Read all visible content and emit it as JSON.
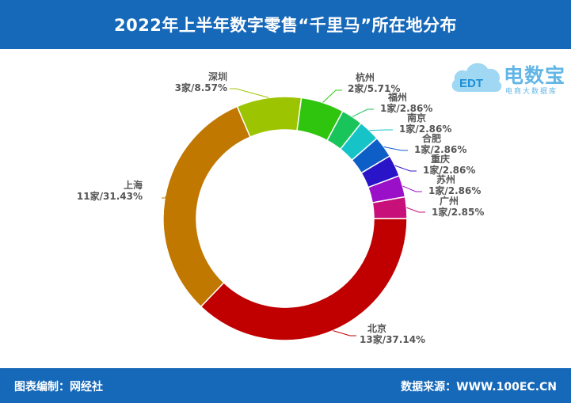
{
  "header": {
    "title": "2022年上半年数字零售“千里马”所在地分布"
  },
  "footer": {
    "editor": "图表编制：网经社",
    "source": "数据来源：WWW.100EC.CN"
  },
  "logo": {
    "brand": "电数宝",
    "subtitle": "电商大数据库",
    "badge": "EDT"
  },
  "chart_data": {
    "type": "pie",
    "donut": true,
    "title": "2022年上半年数字零售“千里马”所在地分布",
    "slices": [
      {
        "name": "北京",
        "count": 13,
        "percent": 37.14,
        "label": "13家/37.14%",
        "color": "#c00000"
      },
      {
        "name": "上海",
        "count": 11,
        "percent": 31.43,
        "label": "11家/31.43%",
        "color": "#c07800"
      },
      {
        "name": "深圳",
        "count": 3,
        "percent": 8.57,
        "label": "3家/8.57%",
        "color": "#9cc400"
      },
      {
        "name": "杭州",
        "count": 2,
        "percent": 5.71,
        "label": "2家/5.71%",
        "color": "#2fc40e"
      },
      {
        "name": "福州",
        "count": 1,
        "percent": 2.86,
        "label": "1家/2.86%",
        "color": "#19c55a"
      },
      {
        "name": "南京",
        "count": 1,
        "percent": 2.86,
        "label": "1家/2.86%",
        "color": "#16c4c8"
      },
      {
        "name": "合肥",
        "count": 1,
        "percent": 2.86,
        "label": "1家/2.86%",
        "color": "#0d5fc7"
      },
      {
        "name": "重庆",
        "count": 1,
        "percent": 2.86,
        "label": "1家/2.86%",
        "color": "#2a14c8"
      },
      {
        "name": "苏州",
        "count": 1,
        "percent": 2.86,
        "label": "1家/2.86%",
        "color": "#9a10c8"
      },
      {
        "name": "广州",
        "count": 1,
        "percent": 2.85,
        "label": "1家/2.85%",
        "color": "#c8107a"
      }
    ]
  }
}
